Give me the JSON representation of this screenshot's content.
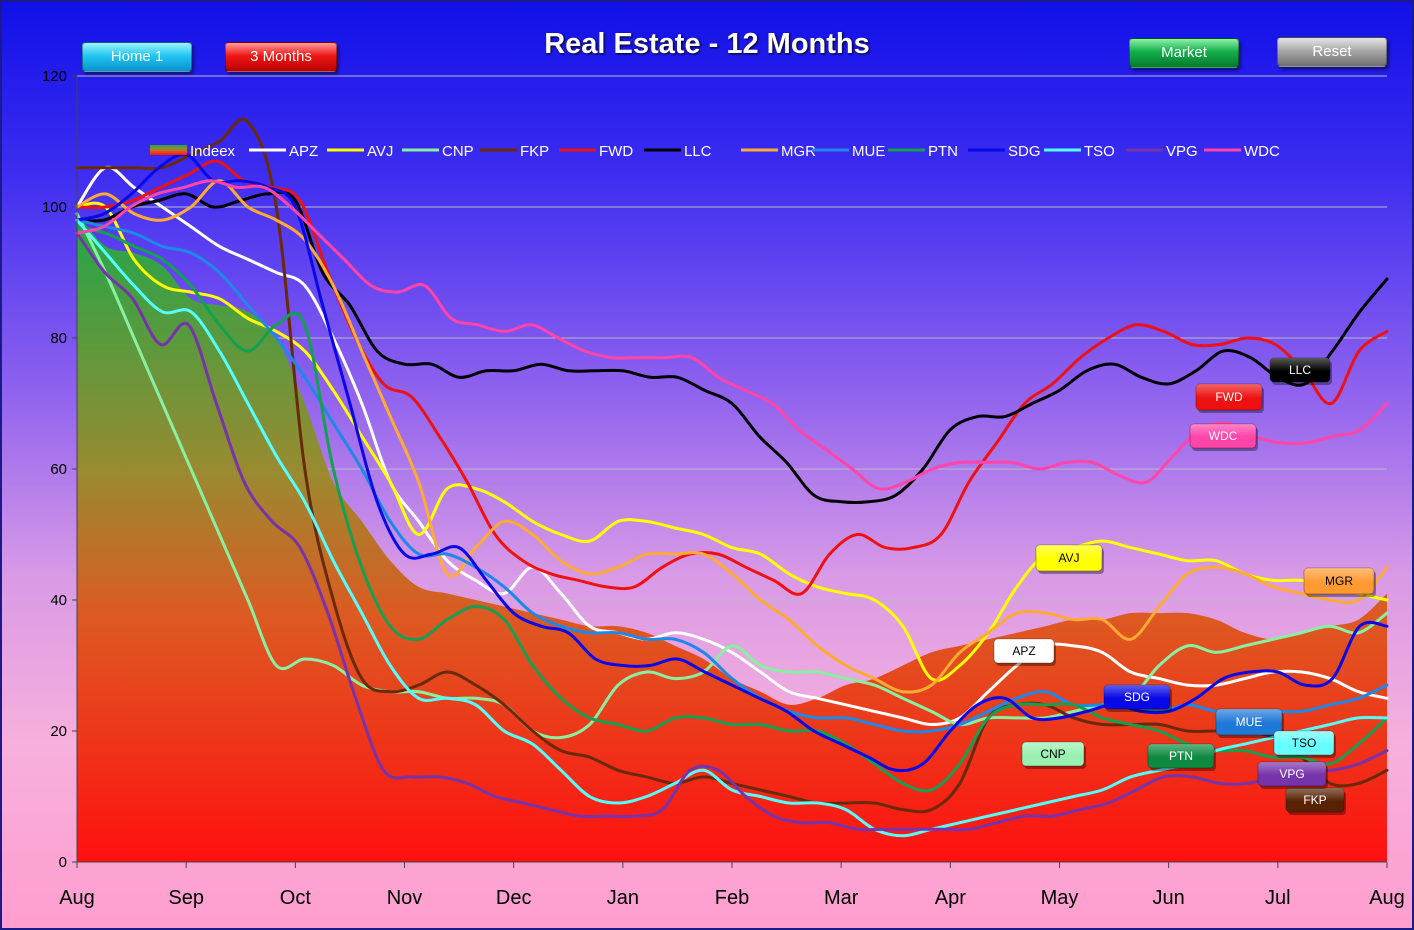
{
  "title": "Real Estate - 12 Months",
  "buttons": {
    "home": "Home 1",
    "three_months": "3 Months",
    "market": "Market",
    "reset": "Reset"
  },
  "chart_data": {
    "type": "line",
    "title": "Real Estate - 12 Months",
    "xlabel": "",
    "ylabel": "",
    "ylim": [
      0,
      120
    ],
    "yticks": [
      0,
      20,
      40,
      60,
      80,
      100,
      120
    ],
    "xticks": [
      "Aug",
      "Sep",
      "Oct",
      "Nov",
      "Dec",
      "Jan",
      "Feb",
      "Mar",
      "Apr",
      "May",
      "Jun",
      "Jul",
      "Aug"
    ],
    "grid": true,
    "legend_position": "top",
    "index": {
      "name": "Indeex",
      "values": [
        99,
        94,
        93,
        91,
        86,
        85,
        84,
        80,
        70,
        58,
        52,
        46,
        42,
        41,
        40,
        39,
        38,
        37,
        36,
        36,
        35,
        33,
        31,
        28,
        26,
        24,
        25,
        27,
        28,
        30,
        32,
        33,
        34,
        35,
        36,
        37,
        37,
        38,
        38,
        38,
        37,
        35,
        34,
        35,
        36,
        37,
        41
      ]
    },
    "series": [
      {
        "name": "APZ",
        "color": "#ffffff",
        "label_tag": "APZ",
        "values": [
          100,
          106,
          103,
          100,
          97,
          94,
          92,
          90,
          88,
          80,
          70,
          58,
          52,
          46,
          43,
          41,
          45,
          41,
          36,
          35,
          34,
          35,
          34,
          32,
          29,
          26,
          25,
          24,
          23,
          22,
          21,
          22,
          26,
          30,
          33,
          33,
          32,
          29,
          28,
          27,
          27,
          28,
          29,
          29,
          28,
          26,
          25
        ]
      },
      {
        "name": "AVJ",
        "color": "#ffff00",
        "label_tag": "AVJ",
        "values": [
          100,
          100,
          92,
          88,
          87,
          86,
          83,
          81,
          78,
          72,
          65,
          58,
          50,
          57,
          57,
          55,
          52,
          50,
          49,
          52,
          52,
          51,
          50,
          48,
          47,
          44,
          42,
          41,
          40,
          36,
          28,
          30,
          35,
          42,
          47,
          48,
          49,
          48,
          47,
          46,
          46,
          44,
          43,
          43,
          42,
          41,
          40
        ]
      },
      {
        "name": "CNP",
        "color": "#88f0a0",
        "label_tag": "CNP",
        "values": [
          99,
          90,
          80,
          70,
          60,
          50,
          40,
          30,
          31,
          30,
          27,
          26,
          26,
          25,
          25,
          24,
          20,
          19,
          21,
          27,
          29,
          28,
          29,
          33,
          30,
          29,
          29,
          28,
          27,
          25,
          23,
          21,
          22,
          22,
          22,
          23,
          24,
          25,
          30,
          33,
          32,
          33,
          34,
          35,
          36,
          35,
          38
        ]
      },
      {
        "name": "FKP",
        "color": "#6a2a0a",
        "label_tag": "FKP",
        "values": [
          106,
          106,
          106,
          106,
          108,
          110,
          113,
          100,
          60,
          40,
          28,
          26,
          27,
          29,
          27,
          24,
          20,
          17,
          16,
          14,
          13,
          12,
          13,
          12,
          11,
          10,
          9,
          9,
          9,
          8,
          8,
          12,
          22,
          24,
          24,
          22,
          21,
          21,
          21,
          20,
          20,
          20,
          19,
          16,
          12,
          12,
          14
        ]
      },
      {
        "name": "FWD",
        "color": "#ee1111",
        "label_tag": "FWD",
        "values": [
          100,
          100,
          101,
          103,
          105,
          107,
          104,
          103,
          101,
          90,
          80,
          73,
          71,
          65,
          58,
          50,
          46,
          44,
          43,
          42,
          42,
          45,
          47,
          47,
          45,
          43,
          41,
          47,
          50,
          48,
          48,
          50,
          58,
          64,
          70,
          73,
          77,
          80,
          82,
          81,
          79,
          79,
          80,
          79,
          75,
          70,
          78,
          81
        ]
      },
      {
        "name": "LLC",
        "color": "#000000",
        "label_tag": "LLC",
        "values": [
          98,
          98,
          100,
          101,
          102,
          100,
          101,
          102,
          101,
          90,
          85,
          78,
          76,
          76,
          74,
          75,
          75,
          76,
          75,
          75,
          75,
          74,
          74,
          72,
          70,
          65,
          61,
          56,
          55,
          55,
          56,
          60,
          66,
          68,
          68,
          70,
          72,
          75,
          76,
          74,
          73,
          75,
          78,
          77,
          74,
          73,
          78,
          84,
          89
        ]
      },
      {
        "name": "MGR",
        "color": "#ffaa33",
        "label_tag": "MGR",
        "values": [
          100,
          102,
          99,
          98,
          100,
          104,
          100,
          98,
          95,
          88,
          78,
          68,
          58,
          44,
          48,
          52,
          50,
          46,
          44,
          45,
          47,
          47,
          47,
          44,
          40,
          37,
          33,
          30,
          28,
          26,
          27,
          32,
          35,
          38,
          38,
          37,
          37,
          34,
          39,
          44,
          45,
          44,
          42,
          41,
          40,
          40,
          45
        ]
      },
      {
        "name": "MUE",
        "color": "#1e88e8",
        "label_tag": "MUE",
        "values": [
          98,
          97,
          96,
          94,
          93,
          90,
          85,
          80,
          74,
          67,
          60,
          52,
          47,
          47,
          45,
          42,
          38,
          36,
          35,
          35,
          34,
          34,
          32,
          28,
          25,
          23,
          22,
          22,
          21,
          20,
          20,
          21,
          23,
          25,
          26,
          24,
          24,
          24,
          23,
          24,
          23,
          23,
          23,
          23,
          24,
          25,
          27
        ]
      },
      {
        "name": "PTN",
        "color": "#14a050",
        "label_tag": "PTN",
        "values": [
          97,
          96,
          94,
          92,
          88,
          82,
          78,
          82,
          82,
          60,
          45,
          36,
          34,
          37,
          39,
          37,
          30,
          25,
          22,
          21,
          20,
          22,
          22,
          21,
          21,
          20,
          20,
          18,
          15,
          12,
          11,
          15,
          22,
          24,
          24,
          24,
          22,
          21,
          20,
          18,
          17,
          17,
          16,
          16,
          15,
          18,
          22
        ]
      },
      {
        "name": "SDG",
        "color": "#0808e8",
        "label_tag": "SDG",
        "values": [
          98,
          99,
          102,
          106,
          108,
          104,
          104,
          103,
          100,
          85,
          70,
          55,
          47,
          47,
          48,
          43,
          38,
          36,
          35,
          31,
          30,
          30,
          31,
          29,
          27,
          25,
          23,
          20,
          18,
          16,
          14,
          15,
          20,
          24,
          25,
          22,
          22,
          23,
          24,
          23,
          23,
          25,
          28,
          29,
          29,
          27,
          28,
          36,
          36
        ]
      },
      {
        "name": "TSO",
        "color": "#55ffff",
        "label_tag": "TSO",
        "values": [
          98,
          93,
          88,
          84,
          84,
          78,
          70,
          62,
          55,
          46,
          38,
          30,
          25,
          25,
          24,
          20,
          18,
          14,
          10,
          9,
          10,
          12,
          14,
          11,
          10,
          9,
          9,
          8,
          5,
          4,
          5,
          6,
          7,
          8,
          9,
          10,
          11,
          13,
          14,
          15,
          17,
          18,
          19,
          20,
          21,
          22,
          22
        ]
      },
      {
        "name": "VPG",
        "color": "#7733aa",
        "label_tag": "VPG",
        "values": [
          96,
          90,
          86,
          79,
          82,
          70,
          58,
          52,
          48,
          38,
          25,
          14,
          13,
          13,
          12,
          10,
          9,
          8,
          7,
          7,
          7,
          8,
          14,
          14,
          10,
          7,
          6,
          6,
          5,
          5,
          5,
          5,
          5,
          6,
          7,
          7,
          8,
          9,
          11,
          13,
          13,
          12,
          12,
          13,
          14,
          14,
          15,
          17
        ]
      },
      {
        "name": "WDC",
        "color": "#ff44aa",
        "label_tag": "WDC",
        "values": [
          96,
          97,
          100,
          102,
          103,
          104,
          103,
          103,
          100,
          96,
          92,
          88,
          87,
          88,
          83,
          82,
          81,
          82,
          80,
          78,
          77,
          77,
          77,
          77,
          74,
          72,
          70,
          66,
          63,
          60,
          57,
          58,
          60,
          61,
          61,
          61,
          60,
          61,
          61,
          59,
          58,
          62,
          66,
          67,
          65,
          64,
          64,
          65,
          66,
          70
        ]
      }
    ]
  }
}
